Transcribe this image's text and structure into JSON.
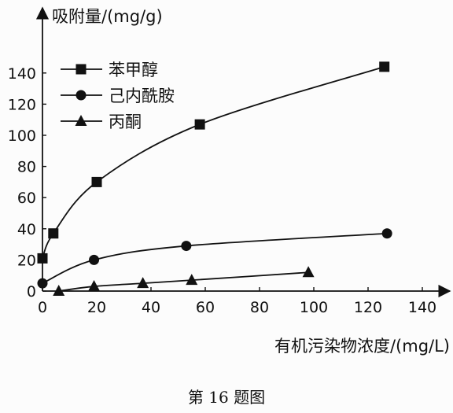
{
  "chart_data": {
    "type": "line",
    "ylabel": "吸附量/(mg/g)",
    "xlabel": "有机污染物浓度/(mg/L)",
    "caption": "第 16 题图",
    "xlim": [
      0,
      140
    ],
    "ylim": [
      0,
      160
    ],
    "xticks": [
      0,
      20,
      40,
      60,
      80,
      100,
      120,
      140
    ],
    "yticks": [
      0,
      20,
      40,
      60,
      80,
      100,
      120,
      140
    ],
    "grid": false,
    "legend_position": "top-left",
    "series": [
      {
        "name": "苯甲醇",
        "marker": "square",
        "x": [
          0,
          4,
          20,
          58,
          126
        ],
        "y": [
          21,
          37,
          70,
          107,
          144
        ]
      },
      {
        "name": "己内酰胺",
        "marker": "circle",
        "x": [
          0,
          19,
          53,
          127
        ],
        "y": [
          5,
          20,
          29,
          37
        ]
      },
      {
        "name": "丙酮",
        "marker": "triangle",
        "x": [
          6,
          19,
          37,
          55,
          98
        ],
        "y": [
          0,
          3,
          5,
          7,
          12
        ]
      }
    ]
  }
}
